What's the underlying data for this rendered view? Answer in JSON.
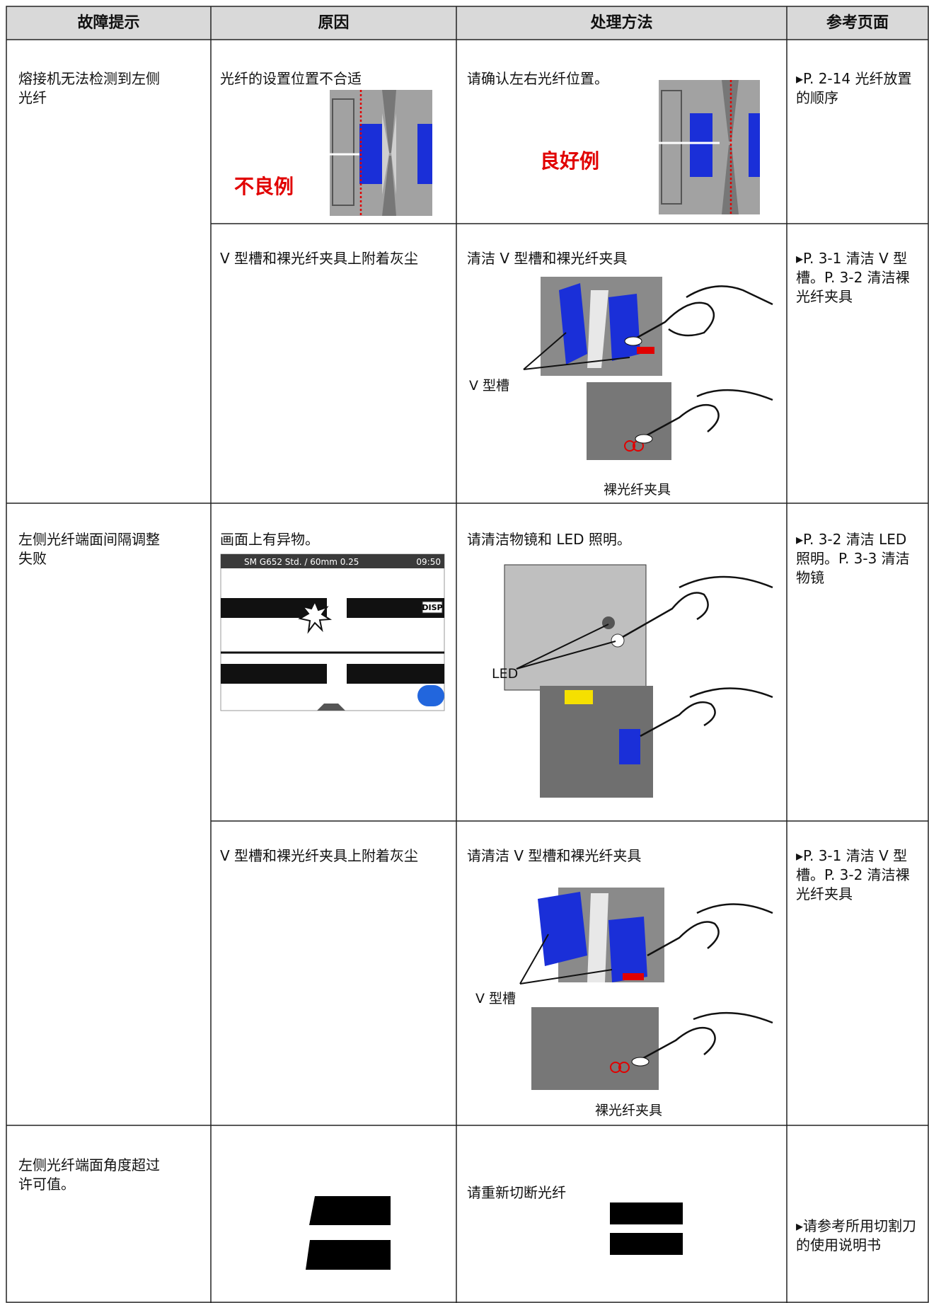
{
  "table": {
    "header": [
      "故障提示",
      "原因",
      "处理方法",
      "参考页面"
    ],
    "groups": [
      {
        "fault": "熔接机无法检测到左侧光纤",
        "items": [
          {
            "cause": "光纤的设置位置不合适",
            "cause_label": "不良例",
            "action": "请确认左右光纤位置。",
            "action_label": "良好例",
            "reference": "▸P. 2-14 光纤放置的顺序"
          },
          {
            "cause": "V 型槽和裸光纤夹具上附着灰尘",
            "action": "清洁 V 型槽和裸光纤夹具",
            "action_labels": [
              "V 型槽",
              "裸光纤夹具"
            ],
            "reference": "▸P. 3-1 清洁 V 型槽。P. 3-2 清洁裸光纤夹具"
          }
        ]
      },
      {
        "fault": "左侧光纤端面间隔调整失败",
        "items": [
          {
            "cause": "画面上有异物。",
            "screen": {
              "title": "SM G652 Std. / 60mm 0.25",
              "time": "09:50",
              "button": "DISP"
            },
            "action": "请清洁物镜和 LED 照明。",
            "action_labels": [
              "LED"
            ],
            "reference": "▸P. 3-2 清洁 LED 照明。P. 3-3 清洁物镜"
          },
          {
            "cause": "V 型槽和裸光纤夹具上附着灰尘",
            "action": "请清洁 V 型槽和裸光纤夹具",
            "action_labels": [
              "V 型槽",
              "裸光纤夹具"
            ],
            "reference": "▸P. 3-1 清洁 V 型槽。P. 3-2 清洁裸光纤夹具"
          }
        ]
      },
      {
        "fault": "左侧光纤端面角度超过许可值。",
        "items": [
          {
            "action": "请重新切断光纤",
            "reference": "▸请参考所用切割刀的使用说明书"
          }
        ]
      }
    ]
  }
}
